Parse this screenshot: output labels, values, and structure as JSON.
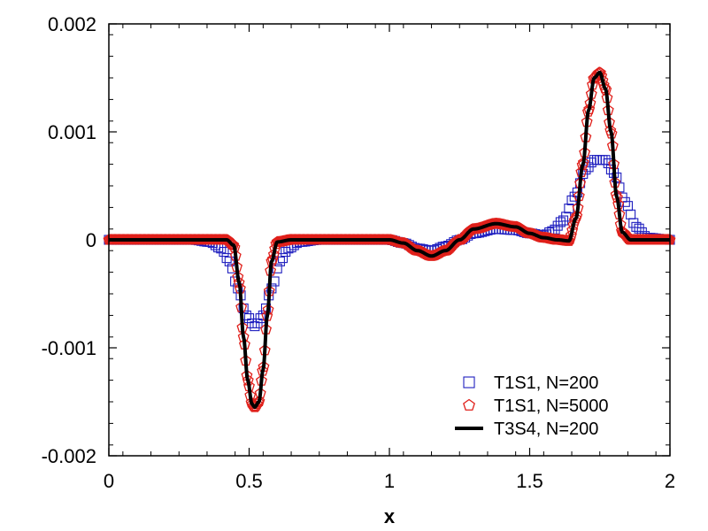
{
  "chart_data": {
    "type": "line",
    "title": "",
    "xlabel": "x",
    "ylabel": "",
    "xlim": [
      0,
      2
    ],
    "ylim": [
      -0.002,
      0.002
    ],
    "xticks": [
      0,
      0.5,
      1,
      1.5,
      2
    ],
    "xtick_labels": [
      "0",
      "0.5",
      "1",
      "1.5",
      "2"
    ],
    "yticks": [
      -0.002,
      -0.001,
      0,
      0.001,
      0.002
    ],
    "ytick_labels": [
      "-0.002",
      "-0.001",
      "0",
      "0.001",
      "0.002"
    ],
    "grid": false,
    "legend_position": "bottom-right",
    "series": [
      {
        "name": "T1S1, N=200",
        "style": "markers",
        "marker": "square",
        "color": "#1f1fbf",
        "points": [
          [
            0.0,
            0.0
          ],
          [
            0.3,
            0.0
          ],
          [
            0.36,
            -2e-05
          ],
          [
            0.4,
            -8e-05
          ],
          [
            0.43,
            -0.0002
          ],
          [
            0.46,
            -0.00045
          ],
          [
            0.49,
            -0.0007
          ],
          [
            0.52,
            -0.0008
          ],
          [
            0.55,
            -0.0007
          ],
          [
            0.58,
            -0.00045
          ],
          [
            0.61,
            -0.0002
          ],
          [
            0.64,
            -8e-05
          ],
          [
            0.68,
            -2e-05
          ],
          [
            0.75,
            0.0
          ],
          [
            1.0,
            0.0
          ],
          [
            1.05,
            -3e-05
          ],
          [
            1.1,
            -8e-05
          ],
          [
            1.15,
            -0.0001
          ],
          [
            1.2,
            -6e-05
          ],
          [
            1.25,
            0.0
          ],
          [
            1.3,
            6e-05
          ],
          [
            1.38,
            0.0001
          ],
          [
            1.45,
            9e-05
          ],
          [
            1.5,
            6e-05
          ],
          [
            1.55,
            4e-05
          ],
          [
            1.58,
            8e-05
          ],
          [
            1.62,
            0.00018
          ],
          [
            1.66,
            0.0004
          ],
          [
            1.7,
            0.00065
          ],
          [
            1.73,
            0.00074
          ],
          [
            1.77,
            0.00074
          ],
          [
            1.8,
            0.00062
          ],
          [
            1.84,
            0.00035
          ],
          [
            1.88,
            0.00012
          ],
          [
            1.92,
            2e-05
          ],
          [
            2.0,
            0.0
          ]
        ]
      },
      {
        "name": "T1S1, N=5000",
        "style": "markers",
        "marker": "pentagon",
        "color": "#e0201b",
        "points": [
          [
            0.0,
            0.0
          ],
          [
            0.42,
            0.0
          ],
          [
            0.445,
            -5e-05
          ],
          [
            0.465,
            -0.0004
          ],
          [
            0.48,
            -0.0009
          ],
          [
            0.495,
            -0.0013
          ],
          [
            0.51,
            -0.00152
          ],
          [
            0.52,
            -0.00155
          ],
          [
            0.535,
            -0.0015
          ],
          [
            0.55,
            -0.0012
          ],
          [
            0.565,
            -0.0007
          ],
          [
            0.58,
            -0.0002
          ],
          [
            0.6,
            -2e-05
          ],
          [
            0.65,
            0.0
          ],
          [
            1.0,
            0.0
          ],
          [
            1.05,
            -3e-05
          ],
          [
            1.1,
            -0.0001
          ],
          [
            1.15,
            -0.00015
          ],
          [
            1.2,
            -0.0001
          ],
          [
            1.25,
            0.0
          ],
          [
            1.3,
            0.0001
          ],
          [
            1.38,
            0.00015
          ],
          [
            1.45,
            0.00012
          ],
          [
            1.5,
            6e-05
          ],
          [
            1.55,
            2e-05
          ],
          [
            1.6,
            0.0
          ],
          [
            1.64,
            -1e-05
          ],
          [
            1.665,
            0.0002
          ],
          [
            1.69,
            0.0007
          ],
          [
            1.71,
            0.0012
          ],
          [
            1.73,
            0.0015
          ],
          [
            1.75,
            0.00155
          ],
          [
            1.77,
            0.0014
          ],
          [
            1.79,
            0.001
          ],
          [
            1.81,
            0.0004
          ],
          [
            1.83,
            7e-05
          ],
          [
            1.86,
            0.0
          ],
          [
            2.0,
            0.0
          ]
        ]
      },
      {
        "name": "T3S4, N=200",
        "style": "line",
        "color": "#000000",
        "points": [
          [
            0.0,
            0.0
          ],
          [
            0.42,
            0.0
          ],
          [
            0.445,
            -5e-05
          ],
          [
            0.465,
            -0.0004
          ],
          [
            0.48,
            -0.0009
          ],
          [
            0.495,
            -0.0013
          ],
          [
            0.51,
            -0.00152
          ],
          [
            0.52,
            -0.00155
          ],
          [
            0.535,
            -0.0015
          ],
          [
            0.55,
            -0.0012
          ],
          [
            0.565,
            -0.0007
          ],
          [
            0.58,
            -0.0002
          ],
          [
            0.6,
            -2e-05
          ],
          [
            0.65,
            0.0
          ],
          [
            1.0,
            0.0
          ],
          [
            1.05,
            -3e-05
          ],
          [
            1.1,
            -0.0001
          ],
          [
            1.15,
            -0.00015
          ],
          [
            1.2,
            -0.0001
          ],
          [
            1.25,
            0.0
          ],
          [
            1.3,
            0.0001
          ],
          [
            1.38,
            0.00015
          ],
          [
            1.45,
            0.00012
          ],
          [
            1.5,
            6e-05
          ],
          [
            1.55,
            2e-05
          ],
          [
            1.6,
            0.0
          ],
          [
            1.64,
            -1e-05
          ],
          [
            1.665,
            0.0002
          ],
          [
            1.69,
            0.0007
          ],
          [
            1.71,
            0.0012
          ],
          [
            1.73,
            0.0015
          ],
          [
            1.75,
            0.00155
          ],
          [
            1.77,
            0.0014
          ],
          [
            1.79,
            0.001
          ],
          [
            1.81,
            0.0004
          ],
          [
            1.83,
            7e-05
          ],
          [
            1.86,
            0.0
          ],
          [
            2.0,
            0.0
          ]
        ]
      }
    ]
  }
}
